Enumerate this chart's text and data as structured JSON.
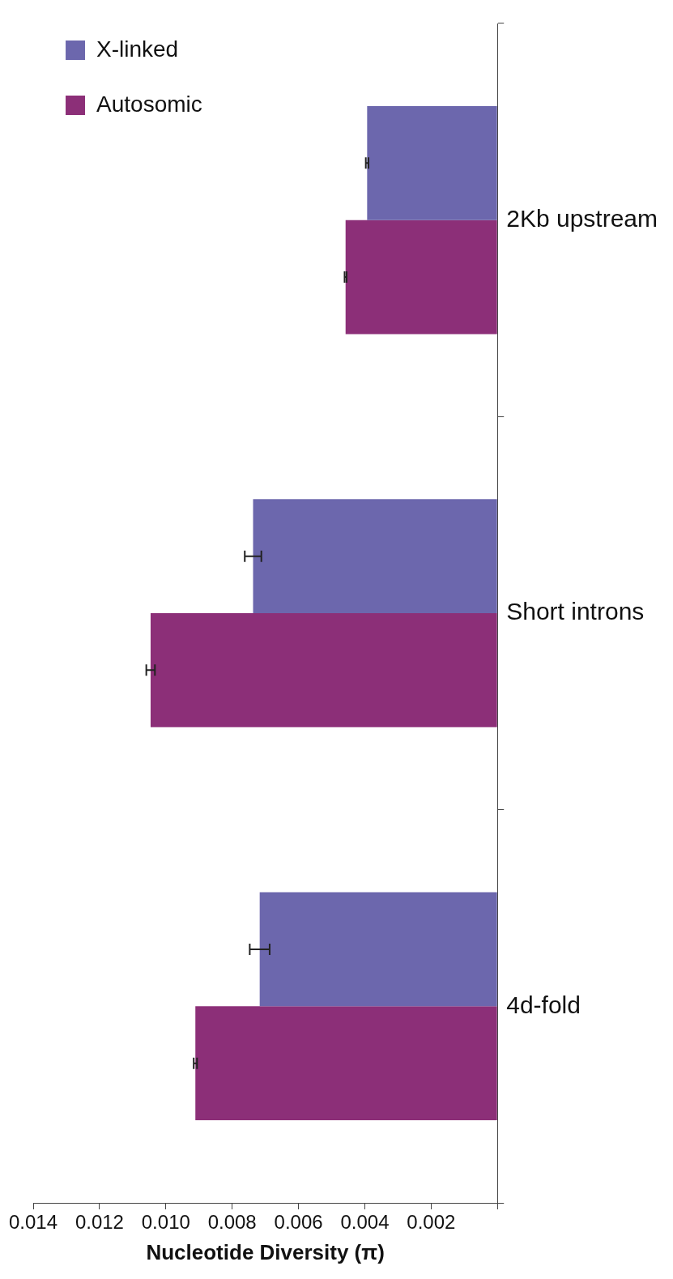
{
  "chart_data": {
    "type": "bar",
    "orientation": "horizontal",
    "xlabel": "Nucleotide Diversity (π)",
    "categories": [
      "2Kb upstream",
      "Short introns",
      "4d-fold"
    ],
    "series": [
      {
        "name": "X-linked",
        "color": "#6c67ad",
        "values": [
          0.00393,
          0.00737,
          0.00717
        ],
        "errors": [
          4e-05,
          0.00025,
          0.0003
        ]
      },
      {
        "name": "Autosomic",
        "color": "#8c2f78",
        "values": [
          0.00458,
          0.01046,
          0.00911
        ],
        "errors": [
          3e-05,
          0.00013,
          5e-05
        ]
      }
    ],
    "xlim": [
      0.014,
      0
    ],
    "xticks": [
      0.014,
      0.012,
      {
        "value": 0.01,
        "label": "0.010"
      },
      0.008,
      0.006,
      0.004,
      0.002,
      {
        "value": 0,
        "label": null
      }
    ],
    "grid": false,
    "legend": "top left"
  }
}
